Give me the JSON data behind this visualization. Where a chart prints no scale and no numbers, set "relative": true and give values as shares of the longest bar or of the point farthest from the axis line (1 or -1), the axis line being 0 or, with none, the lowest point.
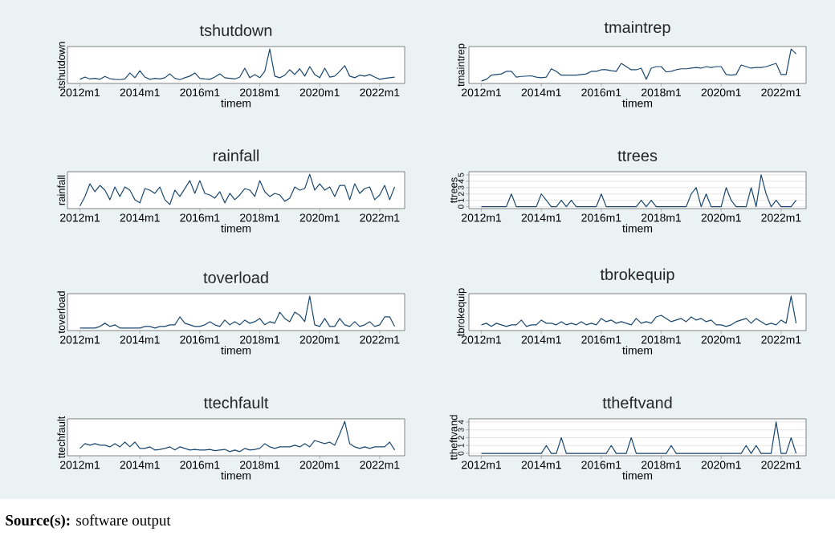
{
  "chart_data": [
    {
      "type": "line",
      "title": "tshutdown",
      "xlabel": "timem",
      "ylabel": "tshutdown",
      "color": "#1a476f",
      "relative": true,
      "tick_labels": "x",
      "xlim": [
        "2011-08",
        "2022-11"
      ],
      "xticks": [
        {
          "value": "2012-01",
          "label": "2012m1"
        },
        {
          "value": "2014-01",
          "label": "2014m1"
        },
        {
          "value": "2016-01",
          "label": "2016m1"
        },
        {
          "value": "2018-01",
          "label": "2018m1"
        },
        {
          "value": "2020-01",
          "label": "2020m1"
        },
        {
          "value": "2022-01",
          "label": "2022m1"
        }
      ],
      "x": [
        "2012-01",
        "2012-03",
        "2012-05",
        "2012-07",
        "2012-09",
        "2012-11",
        "2013-01",
        "2013-03",
        "2013-05",
        "2013-07",
        "2013-09",
        "2013-11",
        "2014-01",
        "2014-03",
        "2014-05",
        "2014-07",
        "2014-09",
        "2014-11",
        "2015-01",
        "2015-03",
        "2015-05",
        "2015-07",
        "2015-09",
        "2015-11",
        "2016-01",
        "2016-03",
        "2016-05",
        "2016-07",
        "2016-09",
        "2016-11",
        "2017-01",
        "2017-03",
        "2017-05",
        "2017-07",
        "2017-09",
        "2017-11",
        "2018-01",
        "2018-03",
        "2018-05",
        "2018-07",
        "2018-09",
        "2018-11",
        "2019-01",
        "2019-03",
        "2019-05",
        "2019-07",
        "2019-09",
        "2019-11",
        "2020-01",
        "2020-03",
        "2020-05",
        "2020-07",
        "2020-09",
        "2020-11",
        "2021-01",
        "2021-03",
        "2021-05",
        "2021-07",
        "2021-09",
        "2021-11",
        "2022-01",
        "2022-03",
        "2022-05",
        "2022-07"
      ],
      "values": [
        0.05,
        0.12,
        0.06,
        0.08,
        0.05,
        0.14,
        0.07,
        0.05,
        0.04,
        0.06,
        0.25,
        0.1,
        0.32,
        0.12,
        0.05,
        0.08,
        0.06,
        0.1,
        0.22,
        0.08,
        0.04,
        0.1,
        0.15,
        0.25,
        0.08,
        0.06,
        0.05,
        0.12,
        0.22,
        0.1,
        0.08,
        0.06,
        0.12,
        0.4,
        0.1,
        0.2,
        0.1,
        0.3,
        1.0,
        0.15,
        0.1,
        0.18,
        0.35,
        0.2,
        0.38,
        0.15,
        0.45,
        0.2,
        0.1,
        0.4,
        0.12,
        0.15,
        0.3,
        0.48,
        0.15,
        0.1,
        0.18,
        0.15,
        0.2,
        0.12,
        0.05,
        0.08,
        0.1,
        0.12
      ]
    },
    {
      "type": "line",
      "title": "tmaintrep",
      "xlabel": "timem",
      "ylabel": "tmaintrep",
      "color": "#1a476f",
      "relative": true,
      "tick_labels": "x",
      "xlim": [
        "2011-08",
        "2022-11"
      ],
      "xticks": [
        {
          "value": "2012-01",
          "label": "2012m1"
        },
        {
          "value": "2014-01",
          "label": "2014m1"
        },
        {
          "value": "2016-01",
          "label": "2016m1"
        },
        {
          "value": "2018-01",
          "label": "2018m1"
        },
        {
          "value": "2020-01",
          "label": "2020m1"
        },
        {
          "value": "2022-01",
          "label": "2022m1"
        }
      ],
      "x": [
        "2012-01",
        "2012-03",
        "2012-05",
        "2012-07",
        "2012-09",
        "2012-11",
        "2013-01",
        "2013-03",
        "2013-05",
        "2013-07",
        "2013-09",
        "2013-11",
        "2014-01",
        "2014-03",
        "2014-05",
        "2014-07",
        "2014-09",
        "2014-11",
        "2015-01",
        "2015-03",
        "2015-05",
        "2015-07",
        "2015-09",
        "2015-11",
        "2016-01",
        "2016-03",
        "2016-05",
        "2016-07",
        "2016-09",
        "2016-11",
        "2017-01",
        "2017-03",
        "2017-05",
        "2017-07",
        "2017-09",
        "2017-11",
        "2018-01",
        "2018-03",
        "2018-05",
        "2018-07",
        "2018-09",
        "2018-11",
        "2019-01",
        "2019-03",
        "2019-05",
        "2019-07",
        "2019-09",
        "2019-11",
        "2020-01",
        "2020-03",
        "2020-05",
        "2020-07",
        "2020-09",
        "2020-11",
        "2021-01",
        "2021-03",
        "2021-05",
        "2021-07",
        "2021-09",
        "2021-11",
        "2022-01",
        "2022-03",
        "2022-05",
        "2022-07"
      ],
      "values": [
        0.0,
        0.05,
        0.18,
        0.2,
        0.22,
        0.3,
        0.3,
        0.12,
        0.14,
        0.15,
        0.16,
        0.12,
        0.1,
        0.12,
        0.38,
        0.3,
        0.18,
        0.18,
        0.18,
        0.18,
        0.2,
        0.22,
        0.3,
        0.3,
        0.35,
        0.35,
        0.32,
        0.3,
        0.55,
        0.45,
        0.35,
        0.35,
        0.4,
        0.05,
        0.4,
        0.45,
        0.45,
        0.28,
        0.3,
        0.35,
        0.38,
        0.38,
        0.4,
        0.42,
        0.4,
        0.45,
        0.42,
        0.45,
        0.45,
        0.2,
        0.18,
        0.2,
        0.5,
        0.45,
        0.4,
        0.42,
        0.42,
        0.45,
        0.5,
        0.55,
        0.2,
        0.2,
        1.0,
        0.85
      ]
    },
    {
      "type": "line",
      "title": "rainfall",
      "xlabel": "timem",
      "ylabel": "rainfall",
      "color": "#1a476f",
      "relative": true,
      "tick_labels": "x",
      "xlim": [
        "2011-08",
        "2022-11"
      ],
      "xticks": [
        {
          "value": "2012-01",
          "label": "2012m1"
        },
        {
          "value": "2014-01",
          "label": "2014m1"
        },
        {
          "value": "2016-01",
          "label": "2016m1"
        },
        {
          "value": "2018-01",
          "label": "2018m1"
        },
        {
          "value": "2020-01",
          "label": "2020m1"
        },
        {
          "value": "2022-01",
          "label": "2022m1"
        }
      ],
      "x": [
        "2012-01",
        "2012-03",
        "2012-05",
        "2012-07",
        "2012-09",
        "2012-11",
        "2013-01",
        "2013-03",
        "2013-05",
        "2013-07",
        "2013-09",
        "2013-11",
        "2014-01",
        "2014-03",
        "2014-05",
        "2014-07",
        "2014-09",
        "2014-11",
        "2015-01",
        "2015-03",
        "2015-05",
        "2015-07",
        "2015-09",
        "2015-11",
        "2016-01",
        "2016-03",
        "2016-05",
        "2016-07",
        "2016-09",
        "2016-11",
        "2017-01",
        "2017-03",
        "2017-05",
        "2017-07",
        "2017-09",
        "2017-11",
        "2018-01",
        "2018-03",
        "2018-05",
        "2018-07",
        "2018-09",
        "2018-11",
        "2019-01",
        "2019-03",
        "2019-05",
        "2019-07",
        "2019-09",
        "2019-11",
        "2020-01",
        "2020-03",
        "2020-05",
        "2020-07",
        "2020-09",
        "2020-11",
        "2021-01",
        "2021-03",
        "2021-05",
        "2021-07",
        "2021-09",
        "2021-11",
        "2022-01",
        "2022-03",
        "2022-05",
        "2022-07"
      ],
      "values": [
        0.0,
        0.3,
        0.7,
        0.45,
        0.65,
        0.5,
        0.2,
        0.6,
        0.3,
        0.6,
        0.5,
        0.2,
        0.1,
        0.55,
        0.5,
        0.4,
        0.6,
        0.2,
        0.05,
        0.5,
        0.3,
        0.55,
        0.8,
        0.4,
        0.8,
        0.4,
        0.35,
        0.25,
        0.45,
        0.1,
        0.4,
        0.2,
        0.35,
        0.55,
        0.5,
        0.3,
        0.8,
        0.45,
        0.3,
        0.4,
        0.35,
        0.15,
        0.25,
        0.6,
        0.5,
        0.55,
        1.0,
        0.5,
        0.7,
        0.5,
        0.6,
        0.3,
        0.65,
        0.65,
        0.2,
        0.7,
        0.4,
        0.55,
        0.6,
        0.2,
        0.35,
        0.65,
        0.2,
        0.6
      ]
    },
    {
      "type": "line",
      "title": "ttrees",
      "xlabel": "timem",
      "ylabel": "ttrees",
      "color": "#1a476f",
      "grid": "y",
      "xlim": [
        "2011-08",
        "2022-11"
      ],
      "ylim": [
        -0.3,
        5.5
      ],
      "yticks": [
        0,
        1,
        2,
        3,
        4,
        5
      ],
      "xticks": [
        {
          "value": "2012-01",
          "label": "2012m1"
        },
        {
          "value": "2014-01",
          "label": "2014m1"
        },
        {
          "value": "2016-01",
          "label": "2016m1"
        },
        {
          "value": "2018-01",
          "label": "2018m1"
        },
        {
          "value": "2020-01",
          "label": "2020m1"
        },
        {
          "value": "2022-01",
          "label": "2022m1"
        }
      ],
      "x": [
        "2012-01",
        "2012-03",
        "2012-05",
        "2012-07",
        "2012-09",
        "2012-11",
        "2013-01",
        "2013-03",
        "2013-05",
        "2013-07",
        "2013-09",
        "2013-11",
        "2014-01",
        "2014-03",
        "2014-05",
        "2014-07",
        "2014-09",
        "2014-11",
        "2015-01",
        "2015-03",
        "2015-05",
        "2015-07",
        "2015-09",
        "2015-11",
        "2016-01",
        "2016-03",
        "2016-05",
        "2016-07",
        "2016-09",
        "2016-11",
        "2017-01",
        "2017-03",
        "2017-05",
        "2017-07",
        "2017-09",
        "2017-11",
        "2018-01",
        "2018-03",
        "2018-05",
        "2018-07",
        "2018-09",
        "2018-11",
        "2019-01",
        "2019-03",
        "2019-05",
        "2019-07",
        "2019-09",
        "2019-11",
        "2020-01",
        "2020-03",
        "2020-05",
        "2020-07",
        "2020-09",
        "2020-11",
        "2021-01",
        "2021-03",
        "2021-05",
        "2021-07",
        "2021-09",
        "2021-11",
        "2022-01",
        "2022-03",
        "2022-05",
        "2022-07"
      ],
      "values": [
        0,
        0,
        0,
        0,
        0,
        0,
        2,
        0,
        0,
        0,
        0,
        0,
        2,
        1,
        0,
        0,
        1,
        0,
        1,
        0,
        0,
        0,
        0,
        0,
        2,
        0,
        0,
        0,
        0,
        0,
        0,
        0,
        1,
        0,
        1,
        0,
        0,
        0,
        0,
        0,
        0,
        0,
        2,
        3,
        0,
        2,
        0,
        0,
        0,
        3,
        1,
        0,
        0,
        0,
        3,
        0,
        5,
        2,
        0,
        1,
        0,
        0,
        0,
        1
      ]
    },
    {
      "type": "line",
      "title": "toverload",
      "xlabel": "timem",
      "ylabel": "toverload",
      "color": "#1a476f",
      "relative": true,
      "tick_labels": "x",
      "xlim": [
        "2011-08",
        "2022-11"
      ],
      "xticks": [
        {
          "value": "2012-01",
          "label": "2012m1"
        },
        {
          "value": "2014-01",
          "label": "2014m1"
        },
        {
          "value": "2016-01",
          "label": "2016m1"
        },
        {
          "value": "2018-01",
          "label": "2018m1"
        },
        {
          "value": "2020-01",
          "label": "2020m1"
        },
        {
          "value": "2022-01",
          "label": "2022m1"
        }
      ],
      "x": [
        "2012-01",
        "2012-03",
        "2012-05",
        "2012-07",
        "2012-09",
        "2012-11",
        "2013-01",
        "2013-03",
        "2013-05",
        "2013-07",
        "2013-09",
        "2013-11",
        "2014-01",
        "2014-03",
        "2014-05",
        "2014-07",
        "2014-09",
        "2014-11",
        "2015-01",
        "2015-03",
        "2015-05",
        "2015-07",
        "2015-09",
        "2015-11",
        "2016-01",
        "2016-03",
        "2016-05",
        "2016-07",
        "2016-09",
        "2016-11",
        "2017-01",
        "2017-03",
        "2017-05",
        "2017-07",
        "2017-09",
        "2017-11",
        "2018-01",
        "2018-03",
        "2018-05",
        "2018-07",
        "2018-09",
        "2018-11",
        "2019-01",
        "2019-03",
        "2019-05",
        "2019-07",
        "2019-09",
        "2019-11",
        "2020-01",
        "2020-03",
        "2020-05",
        "2020-07",
        "2020-09",
        "2020-11",
        "2021-01",
        "2021-03",
        "2021-05",
        "2021-07",
        "2021-09",
        "2021-11",
        "2022-01",
        "2022-03",
        "2022-05",
        "2022-07"
      ],
      "values": [
        0,
        0,
        0,
        0,
        0.05,
        0.15,
        0.05,
        0.1,
        0,
        0,
        0,
        0,
        0,
        0.05,
        0.05,
        0,
        0.05,
        0.05,
        0.1,
        0.1,
        0.35,
        0.15,
        0.1,
        0.05,
        0.05,
        0.1,
        0.2,
        0.1,
        0.05,
        0.25,
        0.1,
        0.2,
        0.1,
        0.25,
        0.15,
        0.2,
        0.3,
        0.1,
        0.2,
        0.15,
        0.5,
        0.3,
        0.2,
        0.5,
        0.4,
        0.2,
        1.0,
        0.1,
        0.05,
        0.3,
        0.05,
        0.05,
        0.3,
        0.1,
        0.05,
        0.2,
        0.05,
        0.1,
        0.2,
        0.05,
        0.1,
        0.35,
        0.35,
        0.05
      ]
    },
    {
      "type": "line",
      "title": "tbrokequip",
      "xlabel": "timem",
      "ylabel": "tbrokequip",
      "color": "#1a476f",
      "relative": true,
      "tick_labels": "x",
      "xlim": [
        "2011-08",
        "2022-11"
      ],
      "xticks": [
        {
          "value": "2012-01",
          "label": "2012m1"
        },
        {
          "value": "2014-01",
          "label": "2014m1"
        },
        {
          "value": "2016-01",
          "label": "2016m1"
        },
        {
          "value": "2018-01",
          "label": "2018m1"
        },
        {
          "value": "2020-01",
          "label": "2020m1"
        },
        {
          "value": "2022-01",
          "label": "2022m1"
        }
      ],
      "x": [
        "2012-01",
        "2012-03",
        "2012-05",
        "2012-07",
        "2012-09",
        "2012-11",
        "2013-01",
        "2013-03",
        "2013-05",
        "2013-07",
        "2013-09",
        "2013-11",
        "2014-01",
        "2014-03",
        "2014-05",
        "2014-07",
        "2014-09",
        "2014-11",
        "2015-01",
        "2015-03",
        "2015-05",
        "2015-07",
        "2015-09",
        "2015-11",
        "2016-01",
        "2016-03",
        "2016-05",
        "2016-07",
        "2016-09",
        "2016-11",
        "2017-01",
        "2017-03",
        "2017-05",
        "2017-07",
        "2017-09",
        "2017-11",
        "2018-01",
        "2018-03",
        "2018-05",
        "2018-07",
        "2018-09",
        "2018-11",
        "2019-01",
        "2019-03",
        "2019-05",
        "2019-07",
        "2019-09",
        "2019-11",
        "2020-01",
        "2020-03",
        "2020-05",
        "2020-07",
        "2020-09",
        "2020-11",
        "2021-01",
        "2021-03",
        "2021-05",
        "2021-07",
        "2021-09",
        "2021-11",
        "2022-01",
        "2022-03",
        "2022-05",
        "2022-07"
      ],
      "values": [
        0.1,
        0.15,
        0.05,
        0.15,
        0.1,
        0.05,
        0.1,
        0.1,
        0.25,
        0.05,
        0.1,
        0.1,
        0.25,
        0.15,
        0.15,
        0.1,
        0.2,
        0.1,
        0.15,
        0.1,
        0.2,
        0.1,
        0.15,
        0.1,
        0.3,
        0.2,
        0.25,
        0.15,
        0.2,
        0.15,
        0.1,
        0.3,
        0.15,
        0.2,
        0.15,
        0.35,
        0.4,
        0.3,
        0.2,
        0.25,
        0.3,
        0.2,
        0.35,
        0.25,
        0.3,
        0.2,
        0.25,
        0.1,
        0.1,
        0.05,
        0.1,
        0.2,
        0.25,
        0.3,
        0.15,
        0.3,
        0.2,
        0.1,
        0.15,
        0.1,
        0.25,
        0.15,
        1.0,
        0.15
      ]
    },
    {
      "type": "line",
      "title": "ttechfault",
      "xlabel": "timem",
      "ylabel": "ttechfault",
      "color": "#1a476f",
      "relative": true,
      "tick_labels": "x",
      "xlim": [
        "2011-08",
        "2022-11"
      ],
      "xticks": [
        {
          "value": "2012-01",
          "label": "2012m1"
        },
        {
          "value": "2014-01",
          "label": "2014m1"
        },
        {
          "value": "2016-01",
          "label": "2016m1"
        },
        {
          "value": "2018-01",
          "label": "2018m1"
        },
        {
          "value": "2020-01",
          "label": "2020m1"
        },
        {
          "value": "2022-01",
          "label": "2022m1"
        }
      ],
      "x": [
        "2012-01",
        "2012-03",
        "2012-05",
        "2012-07",
        "2012-09",
        "2012-11",
        "2013-01",
        "2013-03",
        "2013-05",
        "2013-07",
        "2013-09",
        "2013-11",
        "2014-01",
        "2014-03",
        "2014-05",
        "2014-07",
        "2014-09",
        "2014-11",
        "2015-01",
        "2015-03",
        "2015-05",
        "2015-07",
        "2015-09",
        "2015-11",
        "2016-01",
        "2016-03",
        "2016-05",
        "2016-07",
        "2016-09",
        "2016-11",
        "2017-01",
        "2017-03",
        "2017-05",
        "2017-07",
        "2017-09",
        "2017-11",
        "2018-01",
        "2018-03",
        "2018-05",
        "2018-07",
        "2018-09",
        "2018-11",
        "2019-01",
        "2019-03",
        "2019-05",
        "2019-07",
        "2019-09",
        "2019-11",
        "2020-01",
        "2020-03",
        "2020-05",
        "2020-07",
        "2020-09",
        "2020-11",
        "2021-01",
        "2021-03",
        "2021-05",
        "2021-07",
        "2021-09",
        "2021-11",
        "2022-01",
        "2022-03",
        "2022-05",
        "2022-07"
      ],
      "values": [
        0.15,
        0.3,
        0.25,
        0.3,
        0.25,
        0.25,
        0.2,
        0.3,
        0.2,
        0.35,
        0.2,
        0.35,
        0.15,
        0.15,
        0.2,
        0.1,
        0.12,
        0.15,
        0.2,
        0.1,
        0.2,
        0.15,
        0.1,
        0.12,
        0.1,
        0.1,
        0.12,
        0.08,
        0.1,
        0.12,
        0.05,
        0.1,
        0.05,
        0.15,
        0.1,
        0.12,
        0.15,
        0.3,
        0.2,
        0.15,
        0.2,
        0.2,
        0.2,
        0.25,
        0.2,
        0.3,
        0.2,
        0.4,
        0.35,
        0.3,
        0.35,
        0.25,
        0.6,
        1.0,
        0.3,
        0.2,
        0.15,
        0.2,
        0.15,
        0.2,
        0.2,
        0.2,
        0.35,
        0.1
      ]
    },
    {
      "type": "line",
      "title": "ttheftvand",
      "xlabel": "timem",
      "ylabel": "ttheftvand",
      "color": "#1a476f",
      "grid": "y",
      "xlim": [
        "2011-08",
        "2022-11"
      ],
      "ylim": [
        -0.3,
        4.4
      ],
      "yticks": [
        0,
        1,
        2,
        3,
        4
      ],
      "xticks": [
        {
          "value": "2012-01",
          "label": "2012m1"
        },
        {
          "value": "2014-01",
          "label": "2014m1"
        },
        {
          "value": "2016-01",
          "label": "2016m1"
        },
        {
          "value": "2018-01",
          "label": "2018m1"
        },
        {
          "value": "2020-01",
          "label": "2020m1"
        },
        {
          "value": "2022-01",
          "label": "2022m1"
        }
      ],
      "x": [
        "2012-01",
        "2012-03",
        "2012-05",
        "2012-07",
        "2012-09",
        "2012-11",
        "2013-01",
        "2013-03",
        "2013-05",
        "2013-07",
        "2013-09",
        "2013-11",
        "2014-01",
        "2014-03",
        "2014-05",
        "2014-07",
        "2014-09",
        "2014-11",
        "2015-01",
        "2015-03",
        "2015-05",
        "2015-07",
        "2015-09",
        "2015-11",
        "2016-01",
        "2016-03",
        "2016-05",
        "2016-07",
        "2016-09",
        "2016-11",
        "2017-01",
        "2017-03",
        "2017-05",
        "2017-07",
        "2017-09",
        "2017-11",
        "2018-01",
        "2018-03",
        "2018-05",
        "2018-07",
        "2018-09",
        "2018-11",
        "2019-01",
        "2019-03",
        "2019-05",
        "2019-07",
        "2019-09",
        "2019-11",
        "2020-01",
        "2020-03",
        "2020-05",
        "2020-07",
        "2020-09",
        "2020-11",
        "2021-01",
        "2021-03",
        "2021-05",
        "2021-07",
        "2021-09",
        "2021-11",
        "2022-01",
        "2022-03",
        "2022-05",
        "2022-07"
      ],
      "values": [
        0,
        0,
        0,
        0,
        0,
        0,
        0,
        0,
        0,
        0,
        0,
        0,
        0,
        1,
        0,
        0,
        2,
        0,
        0,
        0,
        0,
        0,
        0,
        0,
        0,
        0,
        1,
        0,
        0,
        0,
        2,
        0,
        0,
        0,
        0,
        0,
        0,
        0,
        1,
        0,
        0,
        0,
        0,
        0,
        0,
        0,
        0,
        0,
        0,
        0,
        0,
        0,
        0,
        1,
        0,
        1,
        0,
        0,
        0,
        4,
        0,
        0,
        2,
        0
      ],
      "annotations": [
        "**Source(s):** software output"
      ]
    }
  ]
}
